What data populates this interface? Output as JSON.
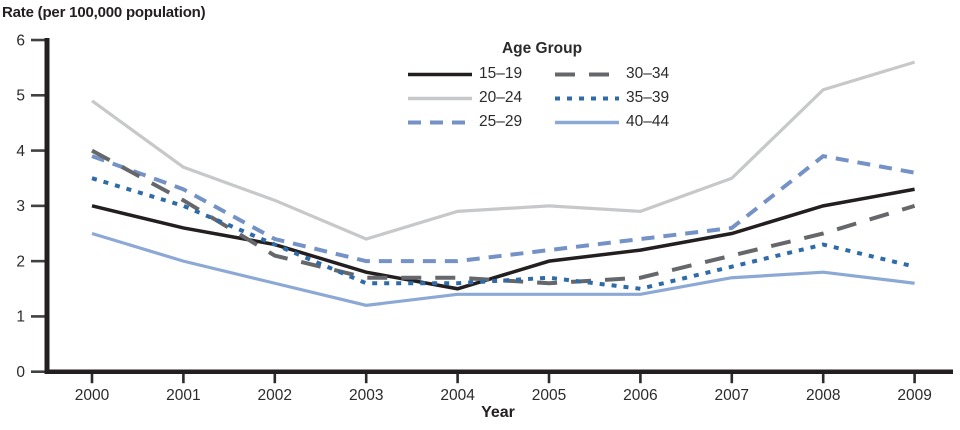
{
  "chart_data": {
    "type": "line",
    "title": "Rate (per 100,000 population)",
    "xlabel": "Year",
    "ylabel": "Rate (per 100,000 population)",
    "legend_title": "Age Group",
    "legend_position": "top-center",
    "grid": false,
    "x": [
      2000,
      2001,
      2002,
      2003,
      2004,
      2005,
      2006,
      2007,
      2008,
      2009
    ],
    "ylim": [
      0,
      6
    ],
    "y_ticks": [
      0,
      1,
      2,
      3,
      4,
      5,
      6
    ],
    "series": [
      {
        "name": "15–19",
        "color": "#231f20",
        "width": 3.5,
        "dash": [],
        "values": [
          3.0,
          2.6,
          2.3,
          1.8,
          1.5,
          2.0,
          2.2,
          2.5,
          3.0,
          3.3
        ]
      },
      {
        "name": "20–24",
        "color": "#c7c8ca",
        "width": 3.2,
        "dash": [],
        "values": [
          4.9,
          3.7,
          3.1,
          2.4,
          2.9,
          3.0,
          2.9,
          3.5,
          5.1,
          5.6
        ]
      },
      {
        "name": "25–29",
        "color": "#7492c6",
        "width": 4,
        "dash": [
          13,
          9
        ],
        "values": [
          3.9,
          3.3,
          2.4,
          2.0,
          2.0,
          2.2,
          2.4,
          2.6,
          3.9,
          3.6
        ]
      },
      {
        "name": "30–34",
        "color": "#65676a",
        "width": 4,
        "dash": [
          20,
          14
        ],
        "values": [
          4.0,
          3.1,
          2.1,
          1.7,
          1.7,
          1.6,
          1.7,
          2.1,
          2.5,
          3.0
        ]
      },
      {
        "name": "35–39",
        "color": "#2e6ba8",
        "width": 4,
        "dash": [
          5,
          7
        ],
        "values": [
          3.5,
          3.0,
          2.3,
          1.6,
          1.6,
          1.7,
          1.5,
          1.9,
          2.3,
          1.9
        ]
      },
      {
        "name": "40–44",
        "color": "#8ca9d5",
        "width": 3.2,
        "dash": [],
        "values": [
          2.5,
          2.0,
          1.6,
          1.2,
          1.4,
          1.4,
          1.4,
          1.7,
          1.8,
          1.6
        ]
      }
    ],
    "legend_order": [
      0,
      3,
      1,
      4,
      2,
      5
    ]
  }
}
